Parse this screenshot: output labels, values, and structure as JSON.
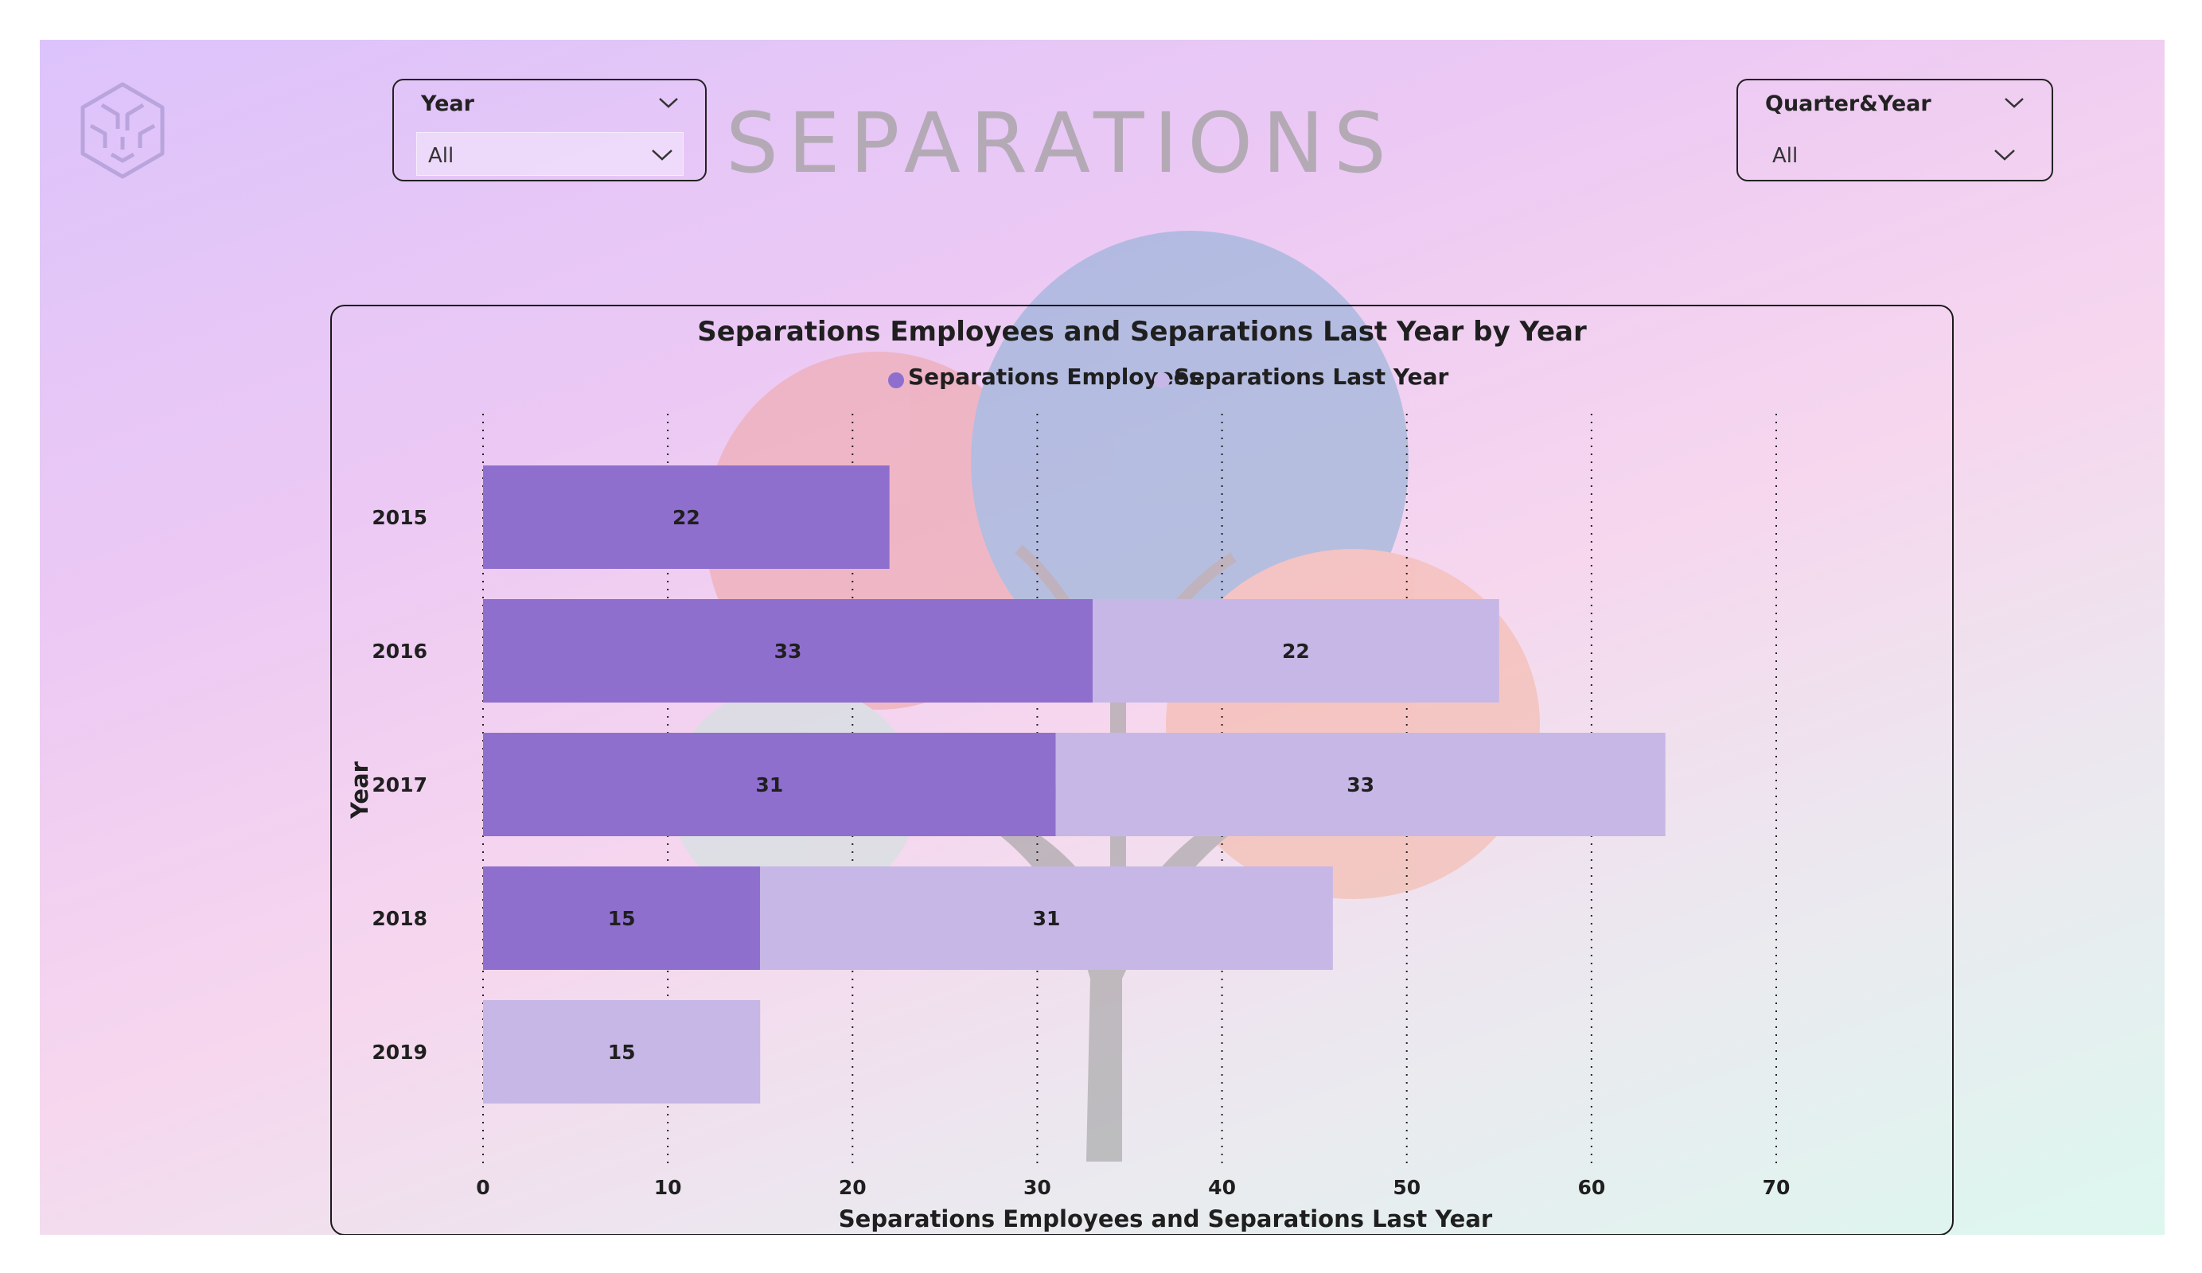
{
  "page": {
    "title": "SEPARATIONS"
  },
  "slicers": {
    "year": {
      "title": "Year",
      "value": "All"
    },
    "quarter_year": {
      "title": "Quarter&Year",
      "value": "All"
    }
  },
  "colors": {
    "series_current": "#8f6fce",
    "series_last_year": "#c7b7e6"
  },
  "chart_data": {
    "type": "bar",
    "orientation": "horizontal",
    "stacked": true,
    "title": "Separations Employees and Separations Last Year by Year",
    "xlabel": "Separations Employees and Separations Last Year",
    "ylabel": "Year",
    "categories": [
      "2015",
      "2016",
      "2017",
      "2018",
      "2019"
    ],
    "series": [
      {
        "name": "Separations Employees",
        "values": [
          22,
          33,
          31,
          15,
          null
        ]
      },
      {
        "name": "Separations Last Year",
        "values": [
          null,
          22,
          33,
          31,
          15
        ]
      }
    ],
    "xlim": [
      0,
      70
    ],
    "xticks": [
      0,
      10,
      20,
      30,
      40,
      50,
      60,
      70
    ],
    "grid": "vertical dotted",
    "legend": "top-center",
    "data_labels": true
  }
}
